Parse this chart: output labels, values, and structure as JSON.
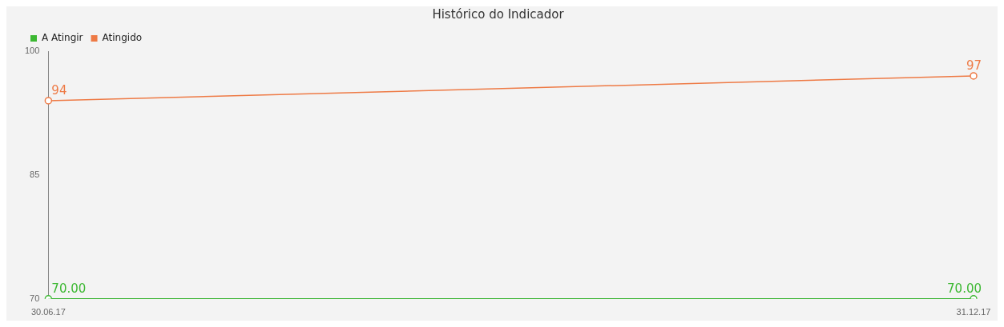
{
  "chart_data": {
    "type": "line",
    "title": "Histórico do Indicador",
    "categories": [
      "30.06.17",
      "31.12.17"
    ],
    "series": [
      {
        "name": "A Atingir",
        "color": "#3cb832",
        "values": [
          70,
          70
        ],
        "value_labels": [
          "70.00",
          "70.00"
        ]
      },
      {
        "name": "Atingido",
        "color": "#ee7a45",
        "values": [
          94,
          97
        ],
        "value_labels": [
          "94",
          "97"
        ]
      }
    ],
    "ylim": [
      70,
      100
    ],
    "yticks": [
      70,
      85,
      100
    ],
    "grid": false,
    "legend": "top left",
    "marker": "circle",
    "line_style": "solid"
  }
}
